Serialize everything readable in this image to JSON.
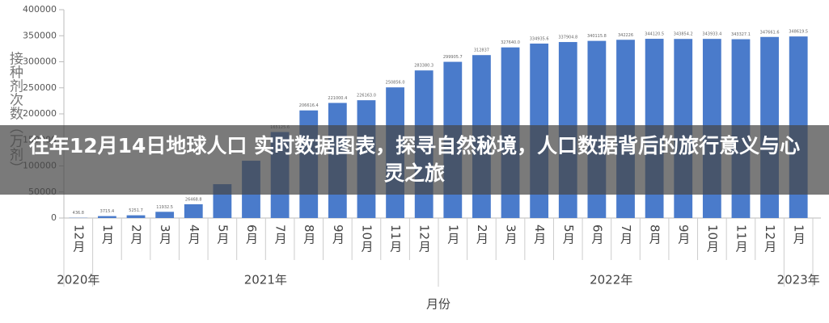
{
  "chart_data": {
    "type": "bar",
    "title": "往年12月14日地球人口 实时数据图表，探寻自然秘境，人口数据背后的旅行意义与心灵之旅",
    "y_label": "接种剂次数（万剂）",
    "x_label": "月份",
    "year_labels": [
      "2020年",
      "2021年",
      "2022年",
      "2023年"
    ],
    "categories": [
      "12月",
      "1月",
      "2月",
      "3月",
      "4月",
      "5月",
      "6月",
      "7月",
      "8月",
      "9月",
      "10月",
      "11月",
      "12月",
      "1月",
      "2月",
      "3月",
      "4月",
      "5月",
      "6月",
      "7月",
      "8月",
      "9月",
      "10月",
      "11月",
      "12月",
      "1月"
    ],
    "values": [
      436.8,
      3715.4,
      5251.7,
      11932.5,
      26468.8,
      65000,
      110000,
      165125.6,
      206616.4,
      221000.4,
      226163.0,
      250856.0,
      283380.3,
      299905.7,
      312837,
      327640.0,
      334935.6,
      337904.8,
      340115.8,
      342226,
      344120.5,
      343854.2,
      343933.4,
      343327.1,
      347661.6,
      348619.5
    ],
    "value_labels": [
      "436.8",
      "3715.4",
      "5251.7",
      "11932.5",
      "26468.8",
      null,
      null,
      "165125.6",
      "206616.4",
      "221000.4",
      "226163.0",
      "250856.0",
      "283380.3",
      "299905.7",
      "312837",
      "327640.0",
      "334935.6",
      "337904.8",
      "340115.8",
      "342226",
      "344120.5",
      "343854.2",
      "343933.4",
      "343327.1",
      "347661.6",
      "348619.5"
    ],
    "color": "#4a7bcb",
    "ylim": [
      0,
      400000
    ],
    "yticks": [
      0,
      50000,
      100000,
      150000,
      200000,
      250000,
      300000,
      350000,
      400000
    ],
    "grid": false
  }
}
